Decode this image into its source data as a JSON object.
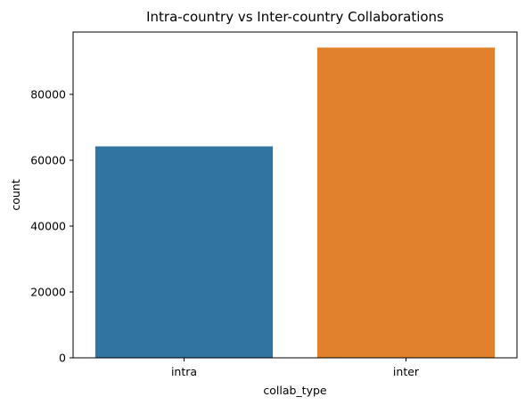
{
  "chart_data": {
    "type": "bar",
    "title": "Intra-country vs Inter-country Collaborations",
    "xlabel": "collab_type",
    "ylabel": "count",
    "categories": [
      "intra",
      "inter"
    ],
    "values": [
      64200,
      94200
    ],
    "colors": [
      "#3274a1",
      "#e1812c"
    ],
    "ylim": [
      0,
      98910
    ],
    "yticks": [
      0,
      20000,
      40000,
      60000,
      80000
    ],
    "grid": false,
    "legend": "none"
  }
}
